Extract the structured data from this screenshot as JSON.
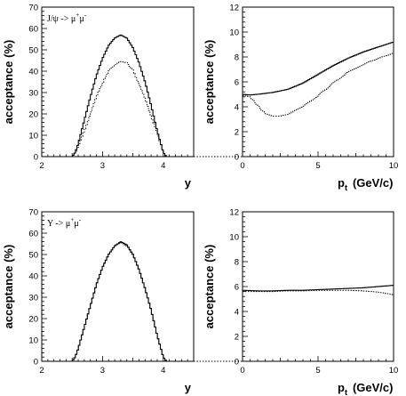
{
  "chart_data": [
    {
      "type": "line",
      "annotation": "J/ψ -> μ+μ-",
      "annotation_main": "J/ψ -> μ",
      "annotation_sup1": "+",
      "annotation_mid": "μ",
      "annotation_sup2": "-",
      "xlabel": "y",
      "ylabel": "acceptance (%)",
      "xlim": [
        2,
        4.5
      ],
      "ylim": [
        0,
        70
      ],
      "xticks": [
        "2",
        "3",
        "4"
      ],
      "yticks": [
        "0",
        "10",
        "20",
        "30",
        "40",
        "50",
        "60",
        "70"
      ],
      "series": [
        {
          "style": "solid",
          "x": [
            2.5,
            2.55,
            2.6,
            2.7,
            2.8,
            2.9,
            3.0,
            3.1,
            3.2,
            3.3,
            3.4,
            3.5,
            3.6,
            3.7,
            3.8,
            3.9,
            4.0,
            4.05
          ],
          "values": [
            0,
            2,
            6,
            17,
            28,
            38,
            46,
            52,
            55.5,
            57,
            55.5,
            51,
            44,
            35,
            24,
            12,
            2,
            0
          ]
        },
        {
          "style": "dotted",
          "x": [
            2.5,
            2.55,
            2.6,
            2.7,
            2.8,
            2.9,
            3.0,
            3.1,
            3.2,
            3.3,
            3.4,
            3.5,
            3.6,
            3.7,
            3.8,
            3.9,
            4.0,
            4.05
          ],
          "values": [
            0,
            1.5,
            5,
            12,
            20,
            28,
            34.5,
            40,
            43,
            44.5,
            44,
            40.5,
            34,
            27,
            19,
            11,
            2,
            0
          ]
        }
      ]
    },
    {
      "type": "line",
      "xlabel": "p",
      "xlabel_sub": "t",
      "xlabel_units": "(GeV/c)",
      "ylabel": "acceptance (%)",
      "xlim": [
        0,
        10
      ],
      "ylim": [
        0,
        12
      ],
      "xticks": [
        "0",
        "5",
        "10"
      ],
      "yticks": [
        "0",
        "2",
        "4",
        "6",
        "8",
        "10",
        "12"
      ],
      "series": [
        {
          "style": "solid",
          "x": [
            0,
            0.5,
            1,
            2,
            3,
            4,
            5,
            6,
            7,
            8,
            9,
            10
          ],
          "values": [
            5.0,
            4.95,
            5.0,
            5.15,
            5.4,
            5.9,
            6.6,
            7.3,
            7.9,
            8.4,
            8.8,
            9.2
          ]
        },
        {
          "style": "dotted",
          "x": [
            0,
            0.5,
            1,
            1.5,
            2,
            2.5,
            3,
            4,
            5,
            6,
            7,
            8,
            9,
            10
          ],
          "values": [
            4.9,
            4.8,
            4.1,
            3.45,
            3.25,
            3.25,
            3.4,
            4.0,
            4.9,
            5.9,
            6.8,
            7.4,
            7.9,
            8.3
          ]
        }
      ]
    },
    {
      "type": "line",
      "annotation": "Υ -> μ+μ-",
      "annotation_main": "Υ -> μ",
      "annotation_sup1": "+",
      "annotation_mid": "μ",
      "annotation_sup2": "-",
      "xlabel": "y",
      "ylabel": "acceptance (%)",
      "xlim": [
        2,
        4.5
      ],
      "ylim": [
        0,
        70
      ],
      "xticks": [
        "2",
        "3",
        "4"
      ],
      "yticks": [
        "0",
        "10",
        "20",
        "30",
        "40",
        "50",
        "60",
        "70"
      ],
      "series": [
        {
          "style": "solid",
          "x": [
            2.5,
            2.55,
            2.6,
            2.7,
            2.8,
            2.9,
            3.0,
            3.1,
            3.2,
            3.3,
            3.4,
            3.5,
            3.6,
            3.7,
            3.8,
            3.9,
            4.0,
            4.05
          ],
          "values": [
            0,
            2,
            6,
            16,
            26,
            36,
            44,
            50,
            54,
            56,
            54.5,
            50,
            43,
            34,
            24,
            12,
            2,
            0
          ]
        },
        {
          "style": "dotted",
          "x": [
            2.5,
            2.55,
            2.6,
            2.7,
            2.8,
            2.9,
            3.0,
            3.1,
            3.2,
            3.3,
            3.4,
            3.5,
            3.6,
            3.7,
            3.8,
            3.9,
            4.0,
            4.05
          ],
          "values": [
            0,
            2,
            6,
            16,
            26,
            36,
            44,
            50,
            54,
            55.5,
            54,
            50,
            43,
            34,
            24,
            12,
            2,
            0
          ]
        }
      ]
    },
    {
      "type": "line",
      "xlabel": "p",
      "xlabel_sub": "t",
      "xlabel_units": "(GeV/c)",
      "ylabel": "acceptance (%)",
      "xlim": [
        0,
        10
      ],
      "ylim": [
        0,
        12
      ],
      "xticks": [
        "0",
        "5",
        "10"
      ],
      "yticks": [
        "0",
        "2",
        "4",
        "6",
        "8",
        "10",
        "12"
      ],
      "series": [
        {
          "style": "solid",
          "x": [
            0,
            1,
            2,
            3,
            4,
            5,
            6,
            7,
            8,
            9,
            10
          ],
          "values": [
            5.7,
            5.65,
            5.65,
            5.7,
            5.7,
            5.75,
            5.8,
            5.85,
            5.9,
            6.0,
            6.1
          ]
        },
        {
          "style": "dotted",
          "x": [
            0,
            1,
            2,
            3,
            4,
            5,
            6,
            7,
            8,
            9,
            10
          ],
          "values": [
            5.6,
            5.6,
            5.6,
            5.65,
            5.65,
            5.7,
            5.7,
            5.7,
            5.65,
            5.55,
            5.35
          ]
        }
      ]
    }
  ]
}
